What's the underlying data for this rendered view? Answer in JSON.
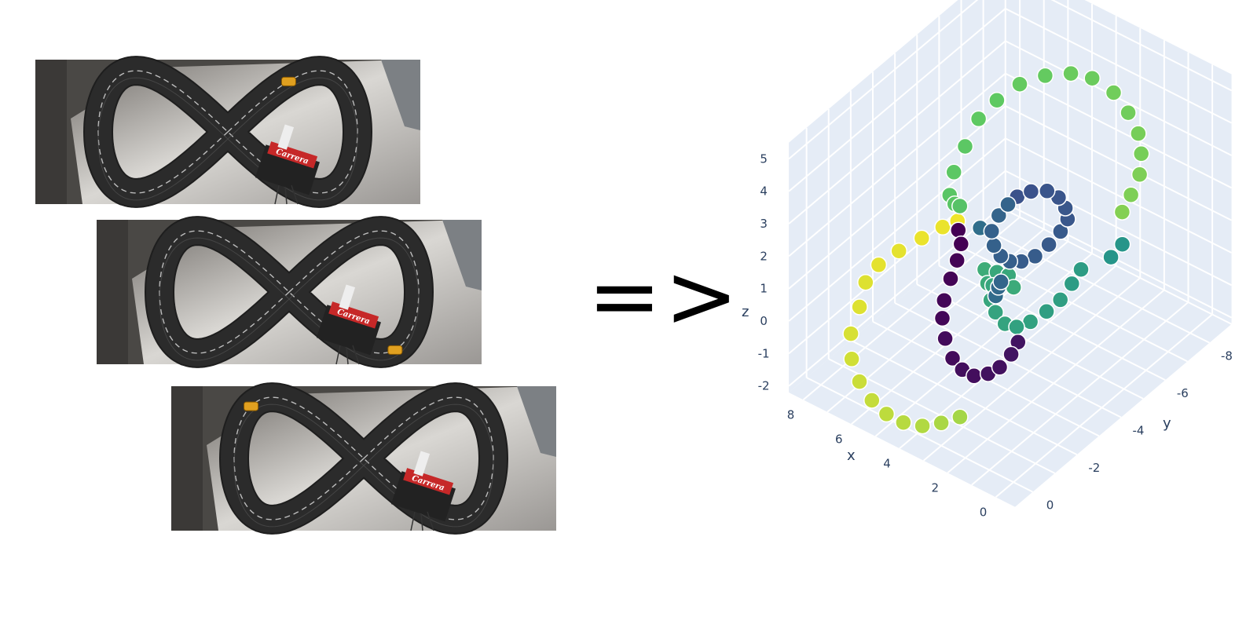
{
  "photos": [
    {
      "name": "track-photo-1",
      "car_at": 0.03,
      "logo": "Carrera"
    },
    {
      "name": "track-photo-2",
      "car_at": 0.3,
      "logo": "Carrera"
    },
    {
      "name": "track-photo-3",
      "car_at": 0.62,
      "logo": "Carrera"
    }
  ],
  "arrow": "=>",
  "chart_data": {
    "type": "scatter3d",
    "axes": {
      "x": {
        "label": "x",
        "ticks": [
          "8",
          "6",
          "4",
          "2",
          "0"
        ],
        "range": [
          -1,
          9
        ]
      },
      "y": {
        "label": "y",
        "ticks": [
          "-8",
          "-6",
          "-4",
          "-2",
          "0"
        ],
        "range": [
          -9,
          1
        ]
      },
      "z": {
        "label": "z",
        "ticks": [
          "5",
          "4",
          "3",
          "2",
          "1",
          "0",
          "-1",
          "-2"
        ],
        "range": [
          -2,
          5.5
        ]
      }
    },
    "colorscale": "viridis",
    "points": [
      {
        "x": 7.5,
        "y": -1.2,
        "z": -0.3,
        "c": 0.95
      },
      {
        "x": 7.8,
        "y": -1.8,
        "z": 0.0,
        "c": 0.95
      },
      {
        "x": 7.9,
        "y": -2.5,
        "z": 0.1,
        "c": 0.96
      },
      {
        "x": 7.7,
        "y": -3.2,
        "z": 0.2,
        "c": 0.96
      },
      {
        "x": 7.3,
        "y": -3.8,
        "z": 0.4,
        "c": 0.97
      },
      {
        "x": 6.8,
        "y": -4.2,
        "z": 0.7,
        "c": 0.97
      },
      {
        "x": 6.3,
        "y": -4.3,
        "z": 1.0,
        "c": 0.98
      },
      {
        "x": 6.0,
        "y": -4.0,
        "z": 1.3,
        "c": 0.98
      },
      {
        "x": 7.4,
        "y": -0.7,
        "z": -0.8,
        "c": 0.94
      },
      {
        "x": 7.0,
        "y": -0.3,
        "z": -1.2,
        "c": 0.93
      },
      {
        "x": 6.4,
        "y": 0.0,
        "z": -1.5,
        "c": 0.92
      },
      {
        "x": 5.7,
        "y": 0.2,
        "z": -1.7,
        "c": 0.91
      },
      {
        "x": 5.0,
        "y": 0.3,
        "z": -1.8,
        "c": 0.9
      },
      {
        "x": 4.3,
        "y": 0.3,
        "z": -1.8,
        "c": 0.89
      },
      {
        "x": 3.6,
        "y": 0.2,
        "z": -1.7,
        "c": 0.88
      },
      {
        "x": 3.0,
        "y": 0.0,
        "z": -1.5,
        "c": 0.87
      },
      {
        "x": 2.5,
        "y": -0.3,
        "z": -1.3,
        "c": 0.86
      },
      {
        "x": 5.6,
        "y": -3.6,
        "z": 1.4,
        "c": 0.0
      },
      {
        "x": 5.3,
        "y": -3.4,
        "z": 1.2,
        "c": 0.0
      },
      {
        "x": 5.1,
        "y": -3.0,
        "z": 1.0,
        "c": 0.01
      },
      {
        "x": 5.0,
        "y": -2.6,
        "z": 0.7,
        "c": 0.01
      },
      {
        "x": 4.9,
        "y": -2.2,
        "z": 0.3,
        "c": 0.02
      },
      {
        "x": 4.7,
        "y": -1.9,
        "z": 0.0,
        "c": 0.02
      },
      {
        "x": 4.4,
        "y": -1.7,
        "z": -0.4,
        "c": 0.03
      },
      {
        "x": 4.0,
        "y": -1.6,
        "z": -0.8,
        "c": 0.03
      },
      {
        "x": 3.6,
        "y": -1.6,
        "z": -1.0,
        "c": 0.04
      },
      {
        "x": 3.2,
        "y": -1.7,
        "z": -1.1,
        "c": 0.04
      },
      {
        "x": 2.8,
        "y": -1.9,
        "z": -1.0,
        "c": 0.05
      },
      {
        "x": 2.5,
        "y": -2.1,
        "z": -0.8,
        "c": 0.05
      },
      {
        "x": 2.3,
        "y": -2.4,
        "z": -0.5,
        "c": 0.06
      },
      {
        "x": 2.2,
        "y": -2.6,
        "z": -0.2,
        "c": 0.06
      },
      {
        "x": 2.6,
        "y": -3.0,
        "z": 3.9,
        "c": 0.25
      },
      {
        "x": 2.3,
        "y": -3.3,
        "z": 4.0,
        "c": 0.25
      },
      {
        "x": 2.0,
        "y": -3.7,
        "z": 3.9,
        "c": 0.26
      },
      {
        "x": 1.8,
        "y": -4.0,
        "z": 3.6,
        "c": 0.26
      },
      {
        "x": 1.7,
        "y": -4.2,
        "z": 3.2,
        "c": 0.27
      },
      {
        "x": 1.7,
        "y": -4.3,
        "z": 2.8,
        "c": 0.27
      },
      {
        "x": 1.9,
        "y": -4.2,
        "z": 2.4,
        "c": 0.28
      },
      {
        "x": 2.2,
        "y": -4.0,
        "z": 2.0,
        "c": 0.28
      },
      {
        "x": 2.5,
        "y": -3.7,
        "z": 1.7,
        "c": 0.29
      },
      {
        "x": 2.8,
        "y": -3.4,
        "z": 1.6,
        "c": 0.29
      },
      {
        "x": 3.0,
        "y": -3.1,
        "z": 1.7,
        "c": 0.3
      },
      {
        "x": 3.1,
        "y": -2.8,
        "z": 2.0,
        "c": 0.3
      },
      {
        "x": 3.2,
        "y": -2.6,
        "z": 2.4,
        "c": 0.31
      },
      {
        "x": 3.2,
        "y": -2.5,
        "z": 2.9,
        "c": 0.31
      },
      {
        "x": 3.0,
        "y": -2.6,
        "z": 3.4,
        "c": 0.32
      },
      {
        "x": 2.8,
        "y": -2.8,
        "z": 3.7,
        "c": 0.32
      },
      {
        "x": 3.0,
        "y": -2.7,
        "z": 1.3,
        "c": 0.33
      },
      {
        "x": 3.2,
        "y": -2.8,
        "z": 1.0,
        "c": 0.34
      },
      {
        "x": 3.4,
        "y": -2.9,
        "z": 0.6,
        "c": 0.35
      },
      {
        "x": 4.6,
        "y": -3.5,
        "z": 1.9,
        "c": 0.36
      },
      {
        "x": 1.6,
        "y": -4.8,
        "z": 1.0,
        "c": 0.55
      },
      {
        "x": 1.8,
        "y": -4.6,
        "z": 0.6,
        "c": 0.55
      },
      {
        "x": 2.0,
        "y": -4.3,
        "z": 0.2,
        "c": 0.56
      },
      {
        "x": 2.3,
        "y": -4.0,
        "z": -0.1,
        "c": 0.56
      },
      {
        "x": 2.6,
        "y": -3.6,
        "z": -0.3,
        "c": 0.57
      },
      {
        "x": 2.9,
        "y": -3.3,
        "z": -0.4,
        "c": 0.57
      },
      {
        "x": 3.2,
        "y": -3.1,
        "z": -0.3,
        "c": 0.58
      },
      {
        "x": 3.5,
        "y": -3.0,
        "z": 0.0,
        "c": 0.58
      },
      {
        "x": 3.7,
        "y": -3.0,
        "z": 0.3,
        "c": 0.59
      },
      {
        "x": 3.8,
        "y": -3.2,
        "z": 0.6,
        "c": 0.59
      },
      {
        "x": 3.9,
        "y": -3.5,
        "z": 0.8,
        "c": 0.6
      },
      {
        "x": 3.6,
        "y": -3.7,
        "z": 0.7,
        "c": 0.6
      },
      {
        "x": 3.3,
        "y": -3.6,
        "z": 0.5,
        "c": 0.61
      },
      {
        "x": 4.2,
        "y": -3.4,
        "z": 0.4,
        "c": 0.61
      },
      {
        "x": 4.5,
        "y": -3.6,
        "z": 0.6,
        "c": 0.62
      },
      {
        "x": 1.0,
        "y": -5.5,
        "z": 1.2,
        "c": 0.52
      },
      {
        "x": 0.8,
        "y": -5.8,
        "z": 1.5,
        "c": 0.52
      },
      {
        "x": 6.5,
        "y": -5.5,
        "z": 3.4,
        "c": 0.75
      },
      {
        "x": 6.2,
        "y": -6.0,
        "z": 3.8,
        "c": 0.75
      },
      {
        "x": 5.8,
        "y": -6.6,
        "z": 4.1,
        "c": 0.76
      },
      {
        "x": 5.2,
        "y": -7.1,
        "z": 4.3,
        "c": 0.76
      },
      {
        "x": 4.5,
        "y": -7.5,
        "z": 4.4,
        "c": 0.77
      },
      {
        "x": 3.8,
        "y": -7.7,
        "z": 4.4,
        "c": 0.77
      },
      {
        "x": 3.0,
        "y": -7.8,
        "z": 4.2,
        "c": 0.78
      },
      {
        "x": 2.3,
        "y": -7.7,
        "z": 3.9,
        "c": 0.78
      },
      {
        "x": 1.7,
        "y": -7.5,
        "z": 3.6,
        "c": 0.79
      },
      {
        "x": 1.3,
        "y": -7.2,
        "z": 3.3,
        "c": 0.79
      },
      {
        "x": 1.0,
        "y": -6.8,
        "z": 3.0,
        "c": 0.8
      },
      {
        "x": 0.9,
        "y": -6.3,
        "z": 2.7,
        "c": 0.8
      },
      {
        "x": 6.6,
        "y": -5.0,
        "z": 2.8,
        "c": 0.74
      },
      {
        "x": 6.7,
        "y": -4.6,
        "z": 2.2,
        "c": 0.74
      },
      {
        "x": 6.6,
        "y": -4.3,
        "z": 1.7,
        "c": 0.73
      },
      {
        "x": 6.3,
        "y": -4.2,
        "z": 1.6,
        "c": 0.73
      },
      {
        "x": 5.9,
        "y": -4.0,
        "z": 1.8,
        "c": 0.72
      },
      {
        "x": 0.9,
        "y": -5.9,
        "z": 2.4,
        "c": 0.81
      }
    ]
  }
}
